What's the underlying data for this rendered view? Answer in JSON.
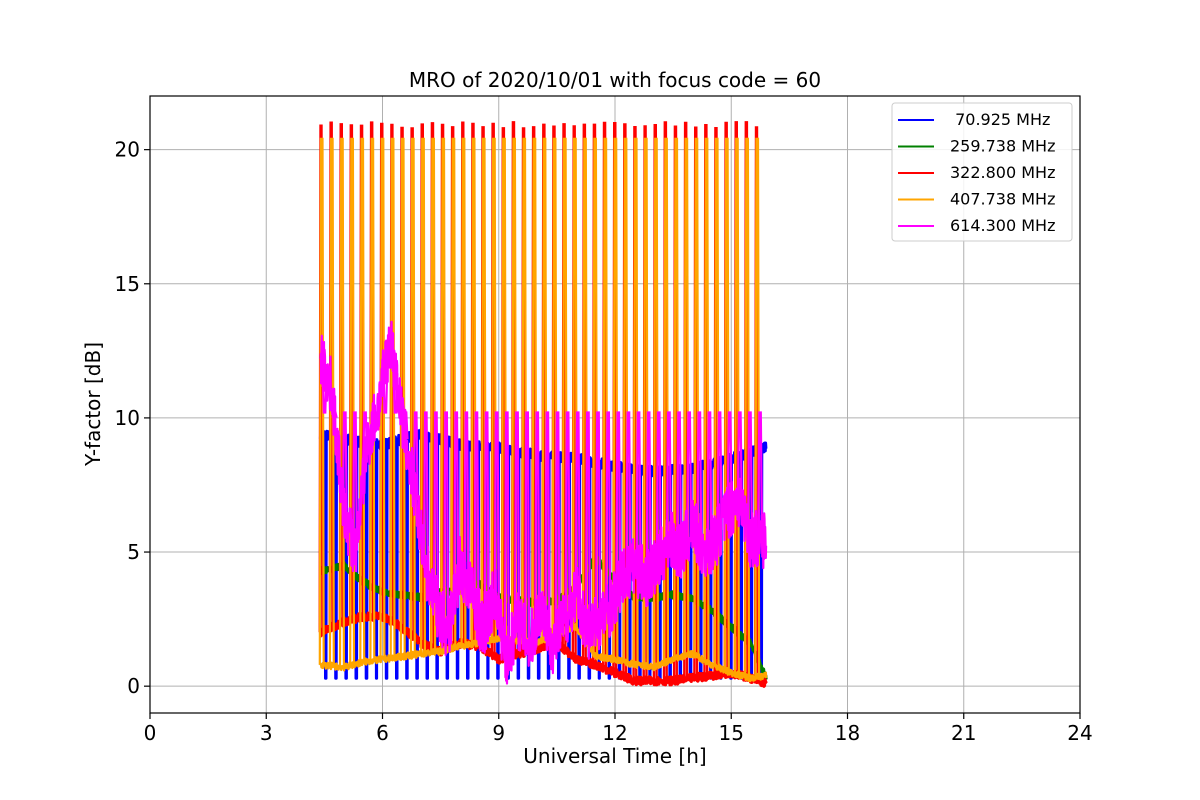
{
  "chart_data": {
    "type": "line",
    "title": "MRO of 2020/10/01 with focus code = 60",
    "xlabel": "Universal Time [h]",
    "ylabel": "Y-factor [dB]",
    "xlim": [
      0,
      24
    ],
    "ylim": [
      -1,
      22
    ],
    "xticks": [
      0,
      3,
      6,
      9,
      12,
      15,
      18,
      21,
      24
    ],
    "yticks": [
      0,
      5,
      10,
      15,
      20
    ],
    "grid": true,
    "legend_position": "top-right",
    "time_range": [
      4.4,
      15.9
    ],
    "series": [
      {
        "name": " 70.925 MHz",
        "color": "#0000ff",
        "x": [
          4.4,
          5.0,
          6.0,
          7.0,
          8.0,
          9.0,
          10.0,
          11.0,
          12.0,
          13.0,
          14.0,
          15.0,
          15.9
        ],
        "y": [
          9.4,
          9.2,
          9.0,
          9.4,
          9.0,
          8.9,
          8.6,
          8.5,
          8.2,
          8.0,
          8.1,
          8.5,
          8.9
        ],
        "dip_value": 0.3
      },
      {
        "name": "259.738 MHz",
        "color": "#008000",
        "x": [
          4.4,
          5.0,
          5.5,
          6.0,
          6.5,
          7.0,
          7.5,
          8.0,
          8.5,
          9.0,
          9.5,
          10.0,
          10.5,
          11.0,
          11.5,
          12.0,
          12.5,
          13.0,
          13.5,
          14.0,
          14.5,
          15.0,
          15.5,
          15.9
        ],
        "y": [
          4.3,
          4.5,
          3.9,
          3.5,
          3.4,
          3.3,
          3.5,
          3.6,
          3.8,
          3.3,
          3.2,
          3.1,
          3.2,
          3.7,
          4.8,
          3.9,
          3.3,
          3.3,
          3.4,
          3.3,
          2.8,
          2.2,
          1.6,
          0.3
        ]
      },
      {
        "name": "322.800 MHz",
        "color": "#ff0000",
        "x": [
          4.4,
          5.0,
          5.5,
          6.0,
          6.5,
          7.0,
          7.5,
          8.0,
          8.5,
          9.0,
          9.5,
          10.0,
          10.5,
          11.0,
          11.5,
          12.0,
          12.5,
          13.0,
          13.5,
          14.0,
          14.5,
          15.0,
          15.5,
          15.9
        ],
        "y": [
          2.0,
          2.4,
          2.6,
          2.6,
          2.2,
          1.6,
          1.3,
          1.6,
          1.5,
          1.0,
          1.2,
          1.4,
          1.6,
          1.0,
          0.8,
          0.5,
          0.2,
          0.2,
          0.2,
          0.3,
          0.4,
          0.5,
          0.3,
          0.1
        ],
        "peak_value": 20.9
      },
      {
        "name": "407.738 MHz",
        "color": "#ffa500",
        "x": [
          4.4,
          5.0,
          5.5,
          6.0,
          6.5,
          7.0,
          7.5,
          8.0,
          8.5,
          9.0,
          9.5,
          10.0,
          10.5,
          11.0,
          11.5,
          12.0,
          12.5,
          13.0,
          13.5,
          14.0,
          14.5,
          15.0,
          15.5,
          15.9
        ],
        "y": [
          0.8,
          0.7,
          0.9,
          1.0,
          1.1,
          1.2,
          1.3,
          1.5,
          1.6,
          1.8,
          1.7,
          1.6,
          2.0,
          2.2,
          1.1,
          1.0,
          0.8,
          0.7,
          1.0,
          1.2,
          0.8,
          0.5,
          0.3,
          0.4
        ],
        "peak_value": 20.4
      },
      {
        "name": "614.300 MHz",
        "color": "#ff00ff",
        "x": [
          4.4,
          4.7,
          5.0,
          5.3,
          5.6,
          5.9,
          6.2,
          6.5,
          6.8,
          7.1,
          7.4,
          7.7,
          8.0,
          8.3,
          8.6,
          8.9,
          9.2,
          9.5,
          9.8,
          10.1,
          10.4,
          10.7,
          11.0,
          11.3,
          11.6,
          11.9,
          12.2,
          12.5,
          12.8,
          13.1,
          13.4,
          13.7,
          14.0,
          14.3,
          14.6,
          14.9,
          15.2,
          15.5,
          15.9
        ],
        "y": [
          12.3,
          11.0,
          6.5,
          5.0,
          9.0,
          10.5,
          13.0,
          10.0,
          7.5,
          4.5,
          3.0,
          2.0,
          4.5,
          3.5,
          2.0,
          3.5,
          1.0,
          2.5,
          1.5,
          3.0,
          1.5,
          2.5,
          3.5,
          2.0,
          2.5,
          3.0,
          4.0,
          4.5,
          4.0,
          4.5,
          5.5,
          5.0,
          6.0,
          5.0,
          5.5,
          6.5,
          7.0,
          5.5,
          5.5
        ],
        "peak_value": 10.2
      }
    ]
  }
}
